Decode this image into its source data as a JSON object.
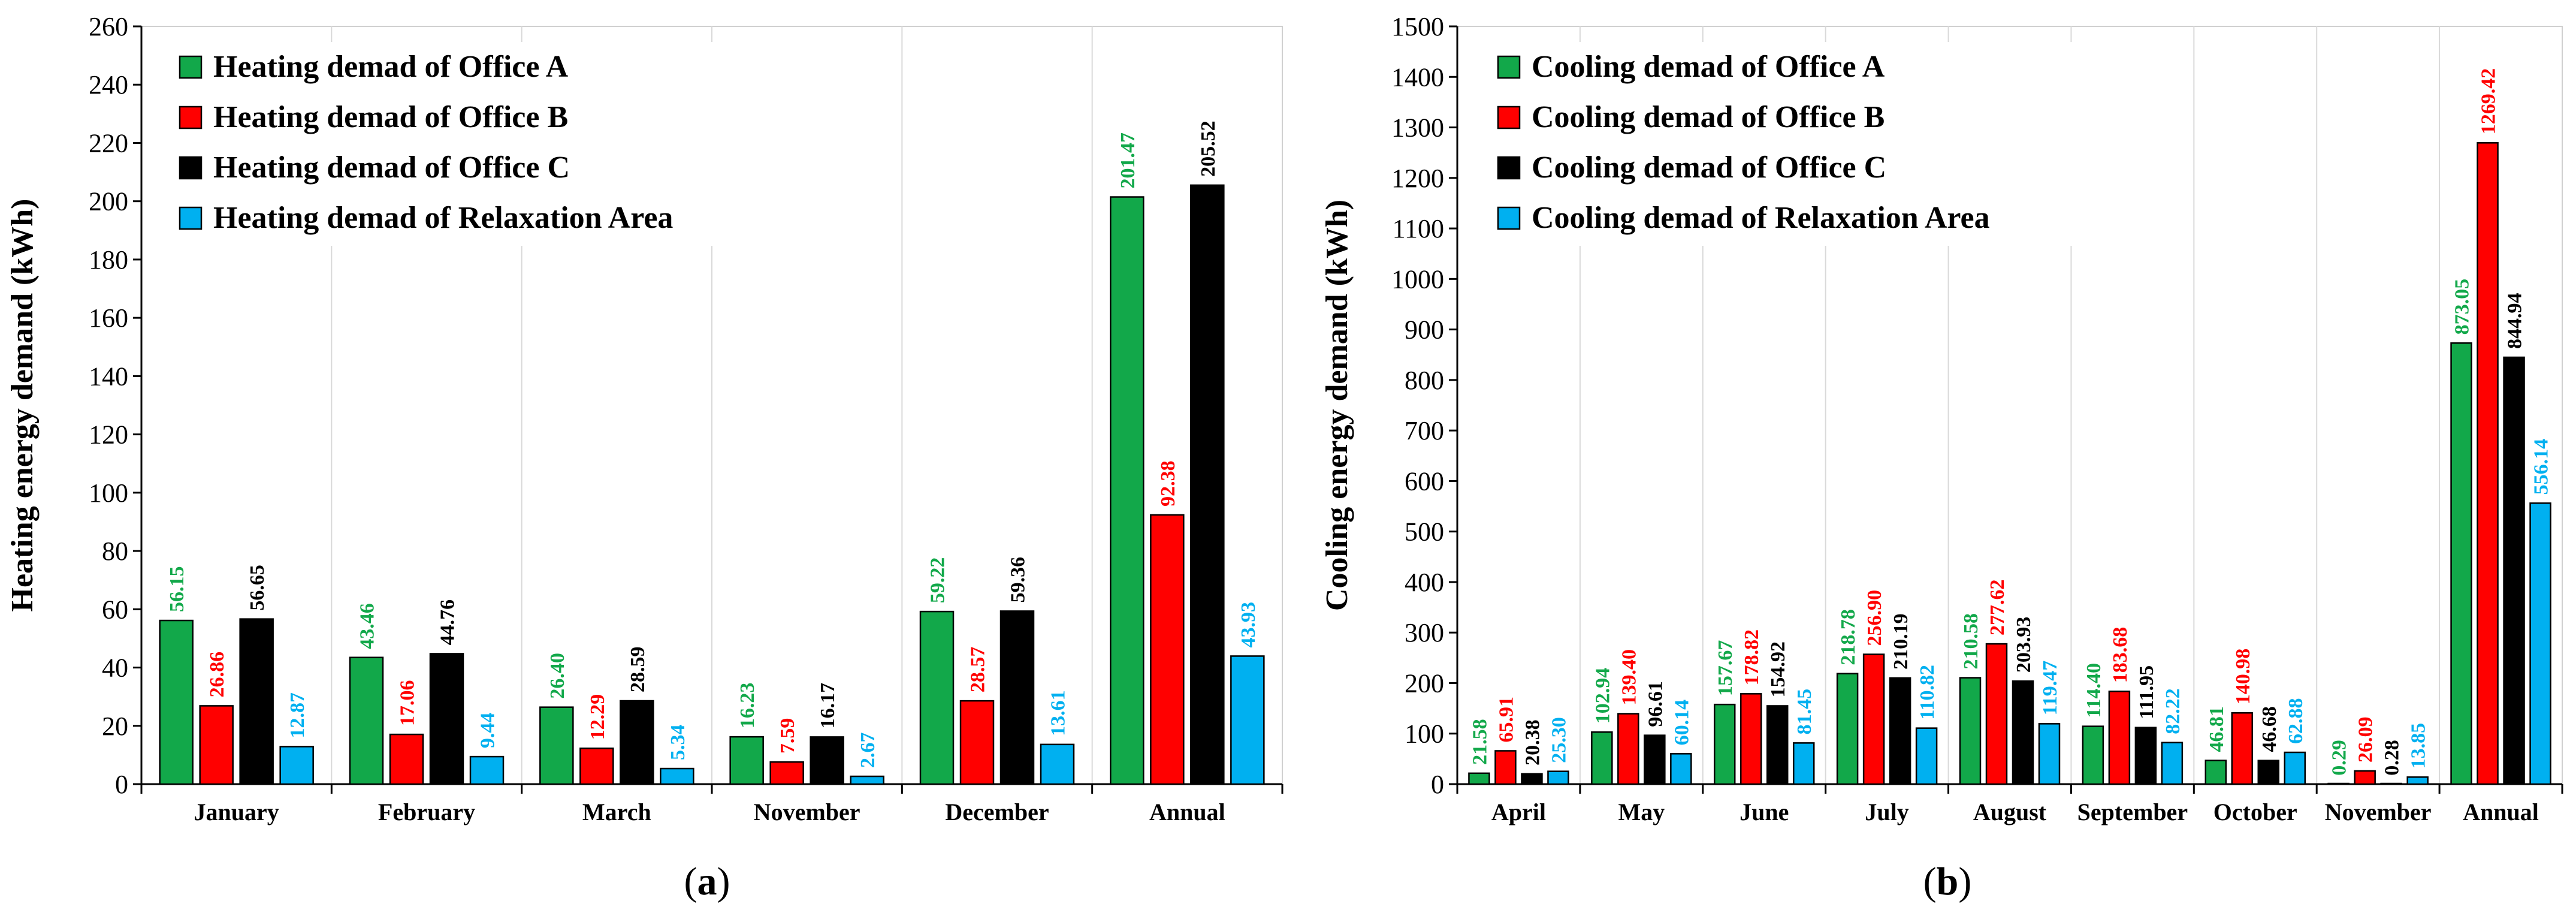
{
  "chart_data": [
    {
      "type": "bar",
      "panel_label": "a",
      "ylabel": "Heating energy demand (kWh)",
      "ylim": [
        0,
        260
      ],
      "yticks": [
        0,
        20,
        40,
        60,
        80,
        100,
        120,
        140,
        160,
        180,
        200,
        220,
        240,
        260
      ],
      "grid": "vertical separators between categories",
      "legend_position": "top-left",
      "categories": [
        "January",
        "February",
        "March",
        "November",
        "December",
        "Annual"
      ],
      "series": [
        {
          "name": "Heating demad of Office A",
          "color": "#12a84a",
          "label_color": "#12a84a",
          "values": [
            56.15,
            43.46,
            26.4,
            16.23,
            59.22,
            201.47
          ]
        },
        {
          "name": "Heating demad of Office B",
          "color": "#ff0000",
          "label_color": "#ff0000",
          "values": [
            26.86,
            17.06,
            12.29,
            7.59,
            28.57,
            92.38
          ]
        },
        {
          "name": "Heating demad of Office C",
          "color": "#000000",
          "label_color": "#000000",
          "values": [
            56.65,
            44.76,
            28.59,
            16.17,
            59.36,
            205.52
          ]
        },
        {
          "name": "Heating demad of Relaxation Area",
          "color": "#00b0f0",
          "label_color": "#00b0f0",
          "values": [
            12.87,
            9.44,
            5.34,
            2.67,
            13.61,
            43.93
          ]
        }
      ],
      "data_labels": [
        [
          "56.15",
          "43.46",
          "26.40",
          "16.23",
          "59.22",
          "201.47"
        ],
        [
          "26.86",
          "17.06",
          "12.29",
          "7.59",
          "28.57",
          "92.38"
        ],
        [
          "56.65",
          "44.76",
          "28.59",
          "16.17",
          "59.36",
          "205.52"
        ],
        [
          "12.87",
          "9.44",
          "5.34",
          "2.67",
          "13.61",
          "43.93"
        ]
      ]
    },
    {
      "type": "bar",
      "panel_label": "b",
      "ylabel": "Cooling energy demand (kWh)",
      "ylim": [
        0,
        1500
      ],
      "yticks": [
        0,
        100,
        200,
        300,
        400,
        500,
        600,
        700,
        800,
        900,
        1000,
        1100,
        1200,
        1300,
        1400,
        1500
      ],
      "grid": "vertical separators between categories",
      "legend_position": "top-left",
      "categories": [
        "April",
        "May",
        "June",
        "July",
        "August",
        "September",
        "October",
        "November",
        "Annual"
      ],
      "series": [
        {
          "name": "Cooling demad of Office A",
          "color": "#12a84a",
          "label_color": "#12a84a",
          "values": [
            21.58,
            102.94,
            157.67,
            218.78,
            210.58,
            114.4,
            46.81,
            0.29,
            873.05
          ]
        },
        {
          "name": "Cooling demad of Office B",
          "color": "#ff0000",
          "label_color": "#ff0000",
          "values": [
            65.91,
            139.4,
            178.82,
            256.9,
            277.62,
            183.68,
            140.98,
            26.09,
            1269.42
          ]
        },
        {
          "name": "Cooling demad of Office C",
          "color": "#000000",
          "label_color": "#000000",
          "values": [
            20.38,
            96.61,
            154.92,
            210.19,
            203.93,
            111.95,
            46.68,
            0.28,
            844.94
          ]
        },
        {
          "name": "Cooling demad of Relaxation Area",
          "color": "#00b0f0",
          "label_color": "#00b0f0",
          "values": [
            25.3,
            60.14,
            81.45,
            110.82,
            119.47,
            82.22,
            62.88,
            13.85,
            556.14
          ]
        }
      ],
      "data_labels": [
        [
          "21.58",
          "102.94",
          "157.67",
          "218.78",
          "210.58",
          "114.40",
          "46.81",
          "0.29",
          "873.05"
        ],
        [
          "65.91",
          "139.40",
          "178.82",
          "256.90",
          "277.62",
          "183.68",
          "140.98",
          "26.09",
          "1269.42"
        ],
        [
          "20.38",
          "96.61",
          "154.92",
          "210.19",
          "203.93",
          "111.95",
          "46.68",
          "0.28",
          "844.94"
        ],
        [
          "25.30",
          "60.14",
          "81.45",
          "110.82",
          "119.47",
          "82.22",
          "62.88",
          "13.85",
          "556.14"
        ]
      ]
    }
  ]
}
